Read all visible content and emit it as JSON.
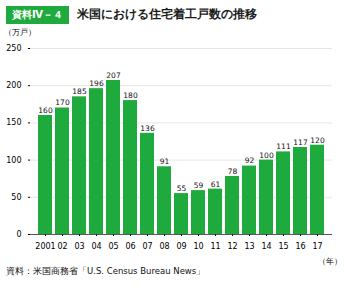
{
  "chart_data": {
    "type": "bar",
    "title": "米国における住宅着工戸数の推移",
    "annotations": [
      "資料Ⅳ－４",
      "資料：米国商務省「U.S. Census Bureau News」"
    ],
    "xlabel": "（年）",
    "ylabel": "（万戸）",
    "categories": [
      "2001",
      "02",
      "03",
      "04",
      "05",
      "06",
      "07",
      "08",
      "09",
      "10",
      "11",
      "12",
      "13",
      "14",
      "15",
      "16",
      "17"
    ],
    "values": [
      160,
      170,
      185,
      196,
      207,
      180,
      136,
      91,
      55,
      59,
      61,
      78,
      92,
      100,
      111,
      117,
      120
    ],
    "color": "#1faa3e",
    "ylim": [
      0,
      250
    ],
    "yticks": [
      0,
      50,
      100,
      150,
      200,
      250
    ],
    "grid": true,
    "data_labels": true
  }
}
